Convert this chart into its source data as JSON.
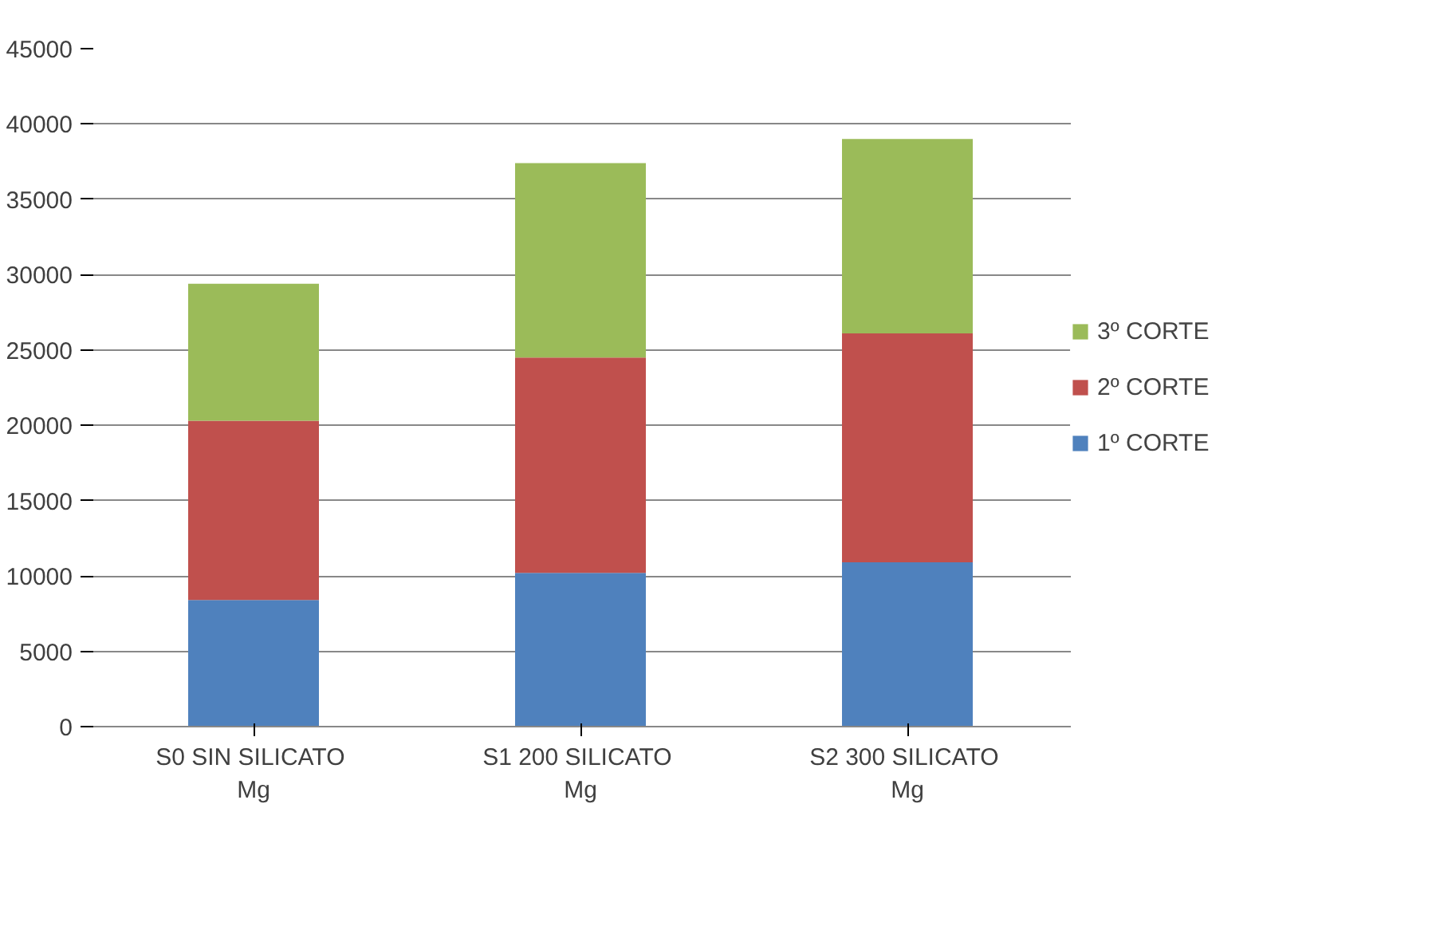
{
  "chart_data": {
    "type": "bar",
    "stacked": true,
    "categories": [
      "S0  SIN SILICATO Mg",
      "S1 200  SILICATO Mg",
      "S2 300  SILICATO Mg"
    ],
    "series": [
      {
        "name": "1º CORTE",
        "color": "#4f81bd",
        "values": [
          8400,
          10200,
          10900
        ]
      },
      {
        "name": "2º CORTE",
        "color": "#c0504d",
        "values": [
          11900,
          14300,
          15200
        ]
      },
      {
        "name": "3º CORTE",
        "color": "#9bbb59",
        "values": [
          9100,
          12900,
          12900
        ]
      }
    ],
    "ylim": [
      0,
      45000
    ],
    "yticks": [
      0,
      5000,
      10000,
      15000,
      20000,
      25000,
      30000,
      35000,
      40000,
      45000
    ],
    "grid": "y",
    "legend": "right"
  }
}
